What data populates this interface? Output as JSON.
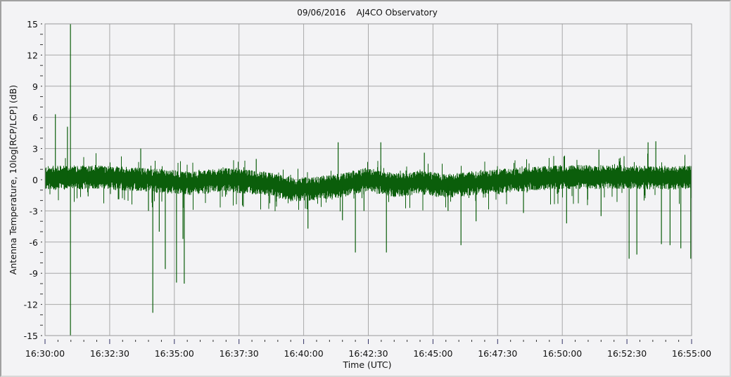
{
  "chart_data": {
    "type": "line",
    "title": "09/06/2016    AJ4CO Observatory",
    "xlabel": "Time (UTC)",
    "ylabel": "Antenna Temperature, 10log[RCP/LCP] (dB)",
    "xlim": [
      "16:30:00",
      "16:55:00"
    ],
    "ylim": [
      -15,
      15
    ],
    "x_ticks": [
      "16:30:00",
      "16:32:30",
      "16:35:00",
      "16:37:30",
      "16:40:00",
      "16:42:30",
      "16:45:00",
      "16:47:30",
      "16:50:00",
      "16:52:30",
      "16:55:00"
    ],
    "y_ticks": [
      "15",
      "12",
      "9",
      "6",
      "3",
      "0",
      "-3",
      "-6",
      "-9",
      "-12",
      "-15"
    ],
    "grid": true,
    "line_color": "#0b5e0b",
    "series": [
      {
        "baseline": [
          {
            "t": "16:30:00",
            "db": 0.2
          },
          {
            "t": "16:32:00",
            "db": 0.3
          },
          {
            "t": "16:34:00",
            "db": 0.0
          },
          {
            "t": "16:35:30",
            "db": -0.3
          },
          {
            "t": "16:37:00",
            "db": 0.0
          },
          {
            "t": "16:38:30",
            "db": -0.3
          },
          {
            "t": "16:39:30",
            "db": -0.9
          },
          {
            "t": "16:40:30",
            "db": -0.8
          },
          {
            "t": "16:41:30",
            "db": -0.5
          },
          {
            "t": "16:42:30",
            "db": 0.1
          },
          {
            "t": "16:43:30",
            "db": -0.5
          },
          {
            "t": "16:44:30",
            "db": -0.2
          },
          {
            "t": "16:45:30",
            "db": -0.6
          },
          {
            "t": "16:46:30",
            "db": -0.3
          },
          {
            "t": "16:48:00",
            "db": 0.0
          },
          {
            "t": "16:50:00",
            "db": 0.3
          },
          {
            "t": "16:52:00",
            "db": 0.3
          },
          {
            "t": "16:55:00",
            "db": 0.2
          }
        ],
        "noise_db": 0.8,
        "spikes": [
          {
            "t": "16:30:24",
            "db": 6.3
          },
          {
            "t": "16:30:52",
            "db": 5.1
          },
          {
            "t": "16:30:59",
            "db": 15
          },
          {
            "t": "16:30:59",
            "db": -15
          },
          {
            "t": "16:31:40",
            "db": -1.6
          },
          {
            "t": "16:33:42",
            "db": 3.0
          },
          {
            "t": "16:34:00",
            "db": -3.0
          },
          {
            "t": "16:34:10",
            "db": -12.8
          },
          {
            "t": "16:34:25",
            "db": -5.0
          },
          {
            "t": "16:34:39",
            "db": -8.6
          },
          {
            "t": "16:35:05",
            "db": -9.9
          },
          {
            "t": "16:35:23",
            "db": -10.0
          },
          {
            "t": "16:35:20",
            "db": -5.7
          },
          {
            "t": "16:37:40",
            "db": -2.6
          },
          {
            "t": "16:38:10",
            "db": 2.0
          },
          {
            "t": "16:40:10",
            "db": -4.7
          },
          {
            "t": "16:41:20",
            "db": 3.6
          },
          {
            "t": "16:41:30",
            "db": -3.9
          },
          {
            "t": "16:42:00",
            "db": -7.0
          },
          {
            "t": "16:42:20",
            "db": -3.0
          },
          {
            "t": "16:42:59",
            "db": 3.6
          },
          {
            "t": "16:43:12",
            "db": -7.0
          },
          {
            "t": "16:44:40",
            "db": 2.6
          },
          {
            "t": "16:45:35",
            "db": -3.0
          },
          {
            "t": "16:46:05",
            "db": -6.3
          },
          {
            "t": "16:46:40",
            "db": -4.0
          },
          {
            "t": "16:48:30",
            "db": -3.2
          },
          {
            "t": "16:50:10",
            "db": -4.2
          },
          {
            "t": "16:51:30",
            "db": -3.5
          },
          {
            "t": "16:51:25",
            "db": 2.9
          },
          {
            "t": "16:52:35",
            "db": -7.6
          },
          {
            "t": "16:52:53",
            "db": -7.2
          },
          {
            "t": "16:53:19",
            "db": 3.6
          },
          {
            "t": "16:53:37",
            "db": 3.7
          },
          {
            "t": "16:53:50",
            "db": -6.2
          },
          {
            "t": "16:54:10",
            "db": -6.3
          },
          {
            "t": "16:54:35",
            "db": -6.6
          },
          {
            "t": "16:54:58",
            "db": -7.6
          }
        ]
      }
    ]
  }
}
